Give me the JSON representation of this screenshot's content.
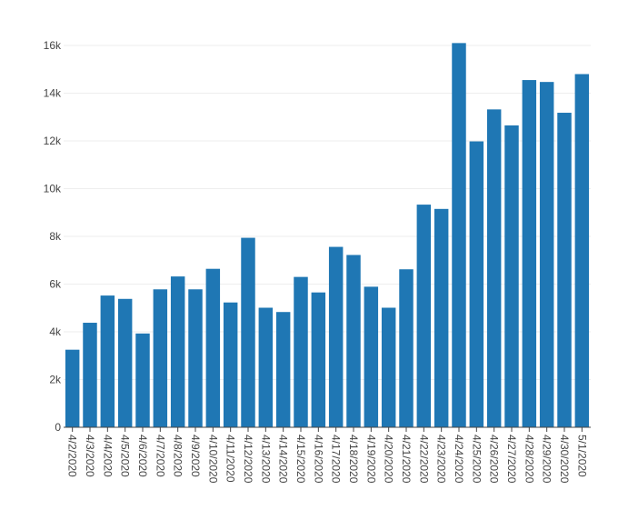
{
  "chart_data": {
    "type": "bar",
    "title": "",
    "xlabel": "",
    "ylabel": "",
    "ylim": [
      0,
      16000
    ],
    "yticks": [
      0,
      2000,
      4000,
      6000,
      8000,
      10000,
      12000,
      14000,
      16000
    ],
    "ytick_labels": [
      "0",
      "2k",
      "4k",
      "6k",
      "8k",
      "10k",
      "12k",
      "14k",
      "16k"
    ],
    "grid": true,
    "legend": "none",
    "bar_color": "#1f77b4",
    "categories": [
      "4/2/2020",
      "4/3/2020",
      "4/4/2020",
      "4/5/2020",
      "4/6/2020",
      "4/7/2020",
      "4/8/2020",
      "4/9/2020",
      "4/10/2020",
      "4/11/2020",
      "4/12/2020",
      "4/13/2020",
      "4/14/2020",
      "4/15/2020",
      "4/16/2020",
      "4/17/2020",
      "4/18/2020",
      "4/19/2020",
      "4/20/2020",
      "4/21/2020",
      "4/22/2020",
      "4/23/2020",
      "4/24/2020",
      "4/25/2020",
      "4/26/2020",
      "4/27/2020",
      "4/28/2020",
      "4/29/2020",
      "4/30/2020",
      "5/1/2020"
    ],
    "values": [
      3250,
      4380,
      5520,
      5380,
      3930,
      5780,
      6320,
      5780,
      6640,
      5230,
      7940,
      5010,
      4830,
      6300,
      5650,
      7560,
      7220,
      5890,
      5010,
      6620,
      9330,
      9150,
      16100,
      11980,
      13320,
      12650,
      14550,
      14470,
      13180,
      14800
    ]
  }
}
